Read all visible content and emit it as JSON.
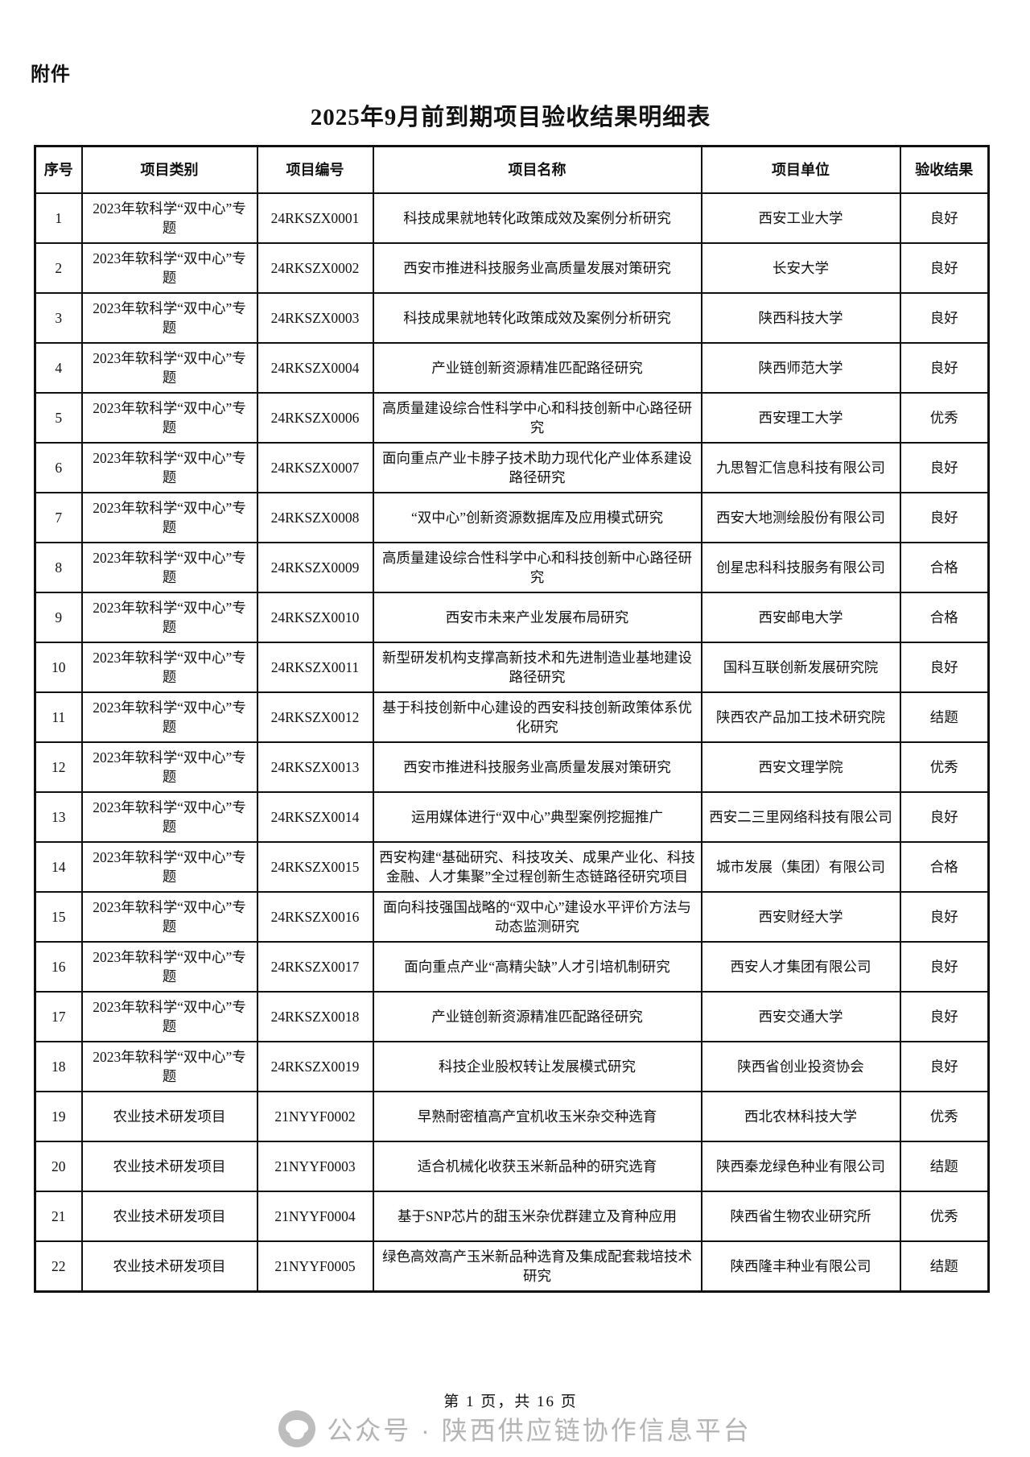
{
  "page": {
    "attachment_label": "附件",
    "title": "2025年9月前到期项目验收结果明细表",
    "footer_page_info": "第 1 页，共 16 页",
    "watermark_text": "公众号 · 陕西供应链协作信息平台",
    "watermark_color": "#b4b4b4",
    "border_color": "#111111"
  },
  "table": {
    "columns": [
      "序号",
      "项目类别",
      "项目编号",
      "项目名称",
      "项目单位",
      "验收结果"
    ],
    "rows": [
      [
        "1",
        "2023年软科学“双中心”专题",
        "24RKSZX0001",
        "科技成果就地转化政策成效及案例分析研究",
        "西安工业大学",
        "良好"
      ],
      [
        "2",
        "2023年软科学“双中心”专题",
        "24RKSZX0002",
        "西安市推进科技服务业高质量发展对策研究",
        "长安大学",
        "良好"
      ],
      [
        "3",
        "2023年软科学“双中心”专题",
        "24RKSZX0003",
        "科技成果就地转化政策成效及案例分析研究",
        "陕西科技大学",
        "良好"
      ],
      [
        "4",
        "2023年软科学“双中心”专题",
        "24RKSZX0004",
        "产业链创新资源精准匹配路径研究",
        "陕西师范大学",
        "良好"
      ],
      [
        "5",
        "2023年软科学“双中心”专题",
        "24RKSZX0006",
        "高质量建设综合性科学中心和科技创新中心路径研究",
        "西安理工大学",
        "优秀"
      ],
      [
        "6",
        "2023年软科学“双中心”专题",
        "24RKSZX0007",
        "面向重点产业卡脖子技术助力现代化产业体系建设路径研究",
        "九思智汇信息科技有限公司",
        "良好"
      ],
      [
        "7",
        "2023年软科学“双中心”专题",
        "24RKSZX0008",
        "“双中心”创新资源数据库及应用模式研究",
        "西安大地测绘股份有限公司",
        "良好"
      ],
      [
        "8",
        "2023年软科学“双中心”专题",
        "24RKSZX0009",
        "高质量建设综合性科学中心和科技创新中心路径研究",
        "创星忠科科技服务有限公司",
        "合格"
      ],
      [
        "9",
        "2023年软科学“双中心”专题",
        "24RKSZX0010",
        "西安市未来产业发展布局研究",
        "西安邮电大学",
        "合格"
      ],
      [
        "10",
        "2023年软科学“双中心”专题",
        "24RKSZX0011",
        "新型研发机构支撑高新技术和先进制造业基地建设路径研究",
        "国科互联创新发展研究院",
        "良好"
      ],
      [
        "11",
        "2023年软科学“双中心”专题",
        "24RKSZX0012",
        "基于科技创新中心建设的西安科技创新政策体系优化研究",
        "陕西农产品加工技术研究院",
        "结题"
      ],
      [
        "12",
        "2023年软科学“双中心”专题",
        "24RKSZX0013",
        "西安市推进科技服务业高质量发展对策研究",
        "西安文理学院",
        "优秀"
      ],
      [
        "13",
        "2023年软科学“双中心”专题",
        "24RKSZX0014",
        "运用媒体进行“双中心”典型案例挖掘推广",
        "西安二三里网络科技有限公司",
        "良好"
      ],
      [
        "14",
        "2023年软科学“双中心”专题",
        "24RKSZX0015",
        "西安构建“基础研究、科技攻关、成果产业化、科技金融、人才集聚”全过程创新生态链路径研究项目",
        "城市发展（集团）有限公司",
        "合格"
      ],
      [
        "15",
        "2023年软科学“双中心”专题",
        "24RKSZX0016",
        "面向科技强国战略的“双中心”建设水平评价方法与动态监测研究",
        "西安财经大学",
        "良好"
      ],
      [
        "16",
        "2023年软科学“双中心”专题",
        "24RKSZX0017",
        "面向重点产业“高精尖缺”人才引培机制研究",
        "西安人才集团有限公司",
        "良好"
      ],
      [
        "17",
        "2023年软科学“双中心”专题",
        "24RKSZX0018",
        "产业链创新资源精准匹配路径研究",
        "西安交通大学",
        "良好"
      ],
      [
        "18",
        "2023年软科学“双中心”专题",
        "24RKSZX0019",
        "科技企业股权转让发展模式研究",
        "陕西省创业投资协会",
        "良好"
      ],
      [
        "19",
        "农业技术研发项目",
        "21NYYF0002",
        "早熟耐密植高产宜机收玉米杂交种选育",
        "西北农林科技大学",
        "优秀"
      ],
      [
        "20",
        "农业技术研发项目",
        "21NYYF0003",
        "适合机械化收获玉米新品种的研究选育",
        "陕西秦龙绿色种业有限公司",
        "结题"
      ],
      [
        "21",
        "农业技术研发项目",
        "21NYYF0004",
        "基于SNP芯片的甜玉米杂优群建立及育种应用",
        "陕西省生物农业研究所",
        "优秀"
      ],
      [
        "22",
        "农业技术研发项目",
        "21NYYF0005",
        "绿色高效高产玉米新品种选育及集成配套栽培技术研究",
        "陕西隆丰种业有限公司",
        "结题"
      ]
    ]
  }
}
